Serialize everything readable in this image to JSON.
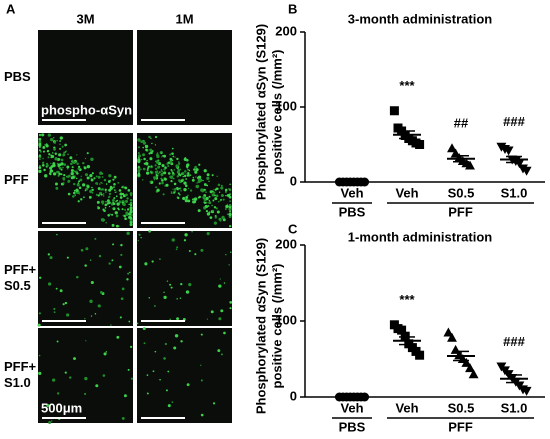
{
  "panel_a": {
    "label": "A",
    "columns": [
      "3M",
      "1M"
    ],
    "rows": [
      [
        "PBS"
      ],
      [
        "PFF"
      ],
      [
        "PFF+",
        "S0.5"
      ],
      [
        "PFF+",
        "S1.0"
      ]
    ],
    "stain_label": "phospho-αSyn",
    "scale_bar_label": "500μm"
  },
  "chart_data": [
    {
      "type": "dot",
      "panel_label": "B",
      "title": "3-month administration",
      "y_label": [
        "Phosphorylated αSyn (S129)",
        "positive cells (/mm²)"
      ],
      "ylim": [
        0,
        200
      ],
      "yticks": [
        0,
        100,
        200
      ],
      "color": "#000000",
      "groups": [
        {
          "name": "PBS",
          "conditions": [
            {
              "label": "Veh",
              "marker": "circle",
              "values": [
                0,
                0,
                0,
                0,
                0,
                0,
                0,
                0
              ],
              "mean": 0,
              "sem": 0,
              "annotation": null
            }
          ]
        },
        {
          "name": "PFF",
          "conditions": [
            {
              "label": "Veh",
              "marker": "square",
              "values": [
                95,
                72,
                68,
                62,
                58,
                55,
                52,
                50
              ],
              "mean": 63,
              "sem": 5,
              "annotation": "***"
            },
            {
              "label": "S0.5",
              "marker": "triangle-up",
              "values": [
                45,
                38,
                32,
                28,
                25,
                22
              ],
              "mean": 31,
              "sem": 4,
              "annotation": "##"
            },
            {
              "label": "S1.0",
              "marker": "triangle-down",
              "values": [
                47,
                44,
                42,
                30,
                28,
                25,
                18,
                15
              ],
              "mean": 30,
              "sem": 4,
              "annotation": "###"
            }
          ]
        }
      ]
    },
    {
      "type": "dot",
      "panel_label": "C",
      "title": "1-month administration",
      "y_label": [
        "Phosphorylated αSyn (S129)",
        "positive cells (/mm²)"
      ],
      "ylim": [
        0,
        200
      ],
      "yticks": [
        0,
        100,
        200
      ],
      "color": "#000000",
      "groups": [
        {
          "name": "PBS",
          "conditions": [
            {
              "label": "Veh",
              "marker": "circle",
              "values": [
                0,
                0,
                0,
                0,
                0,
                0,
                0,
                0
              ],
              "mean": 0,
              "sem": 0,
              "annotation": null
            }
          ]
        },
        {
          "name": "PFF",
          "conditions": [
            {
              "label": "Veh",
              "marker": "square",
              "values": [
                95,
                90,
                88,
                80,
                70,
                65,
                60,
                55
              ],
              "mean": 74,
              "sem": 5,
              "annotation": "***"
            },
            {
              "label": "S0.5",
              "marker": "triangle-up",
              "values": [
                85,
                78,
                62,
                55,
                50,
                45,
                38,
                30
              ],
              "mean": 54,
              "sem": 6,
              "annotation": null
            },
            {
              "label": "S1.0",
              "marker": "triangle-down",
              "values": [
                40,
                35,
                30,
                25,
                20,
                15,
                10,
                8
              ],
              "mean": 24,
              "sem": 5,
              "annotation": "###"
            }
          ]
        }
      ]
    }
  ]
}
